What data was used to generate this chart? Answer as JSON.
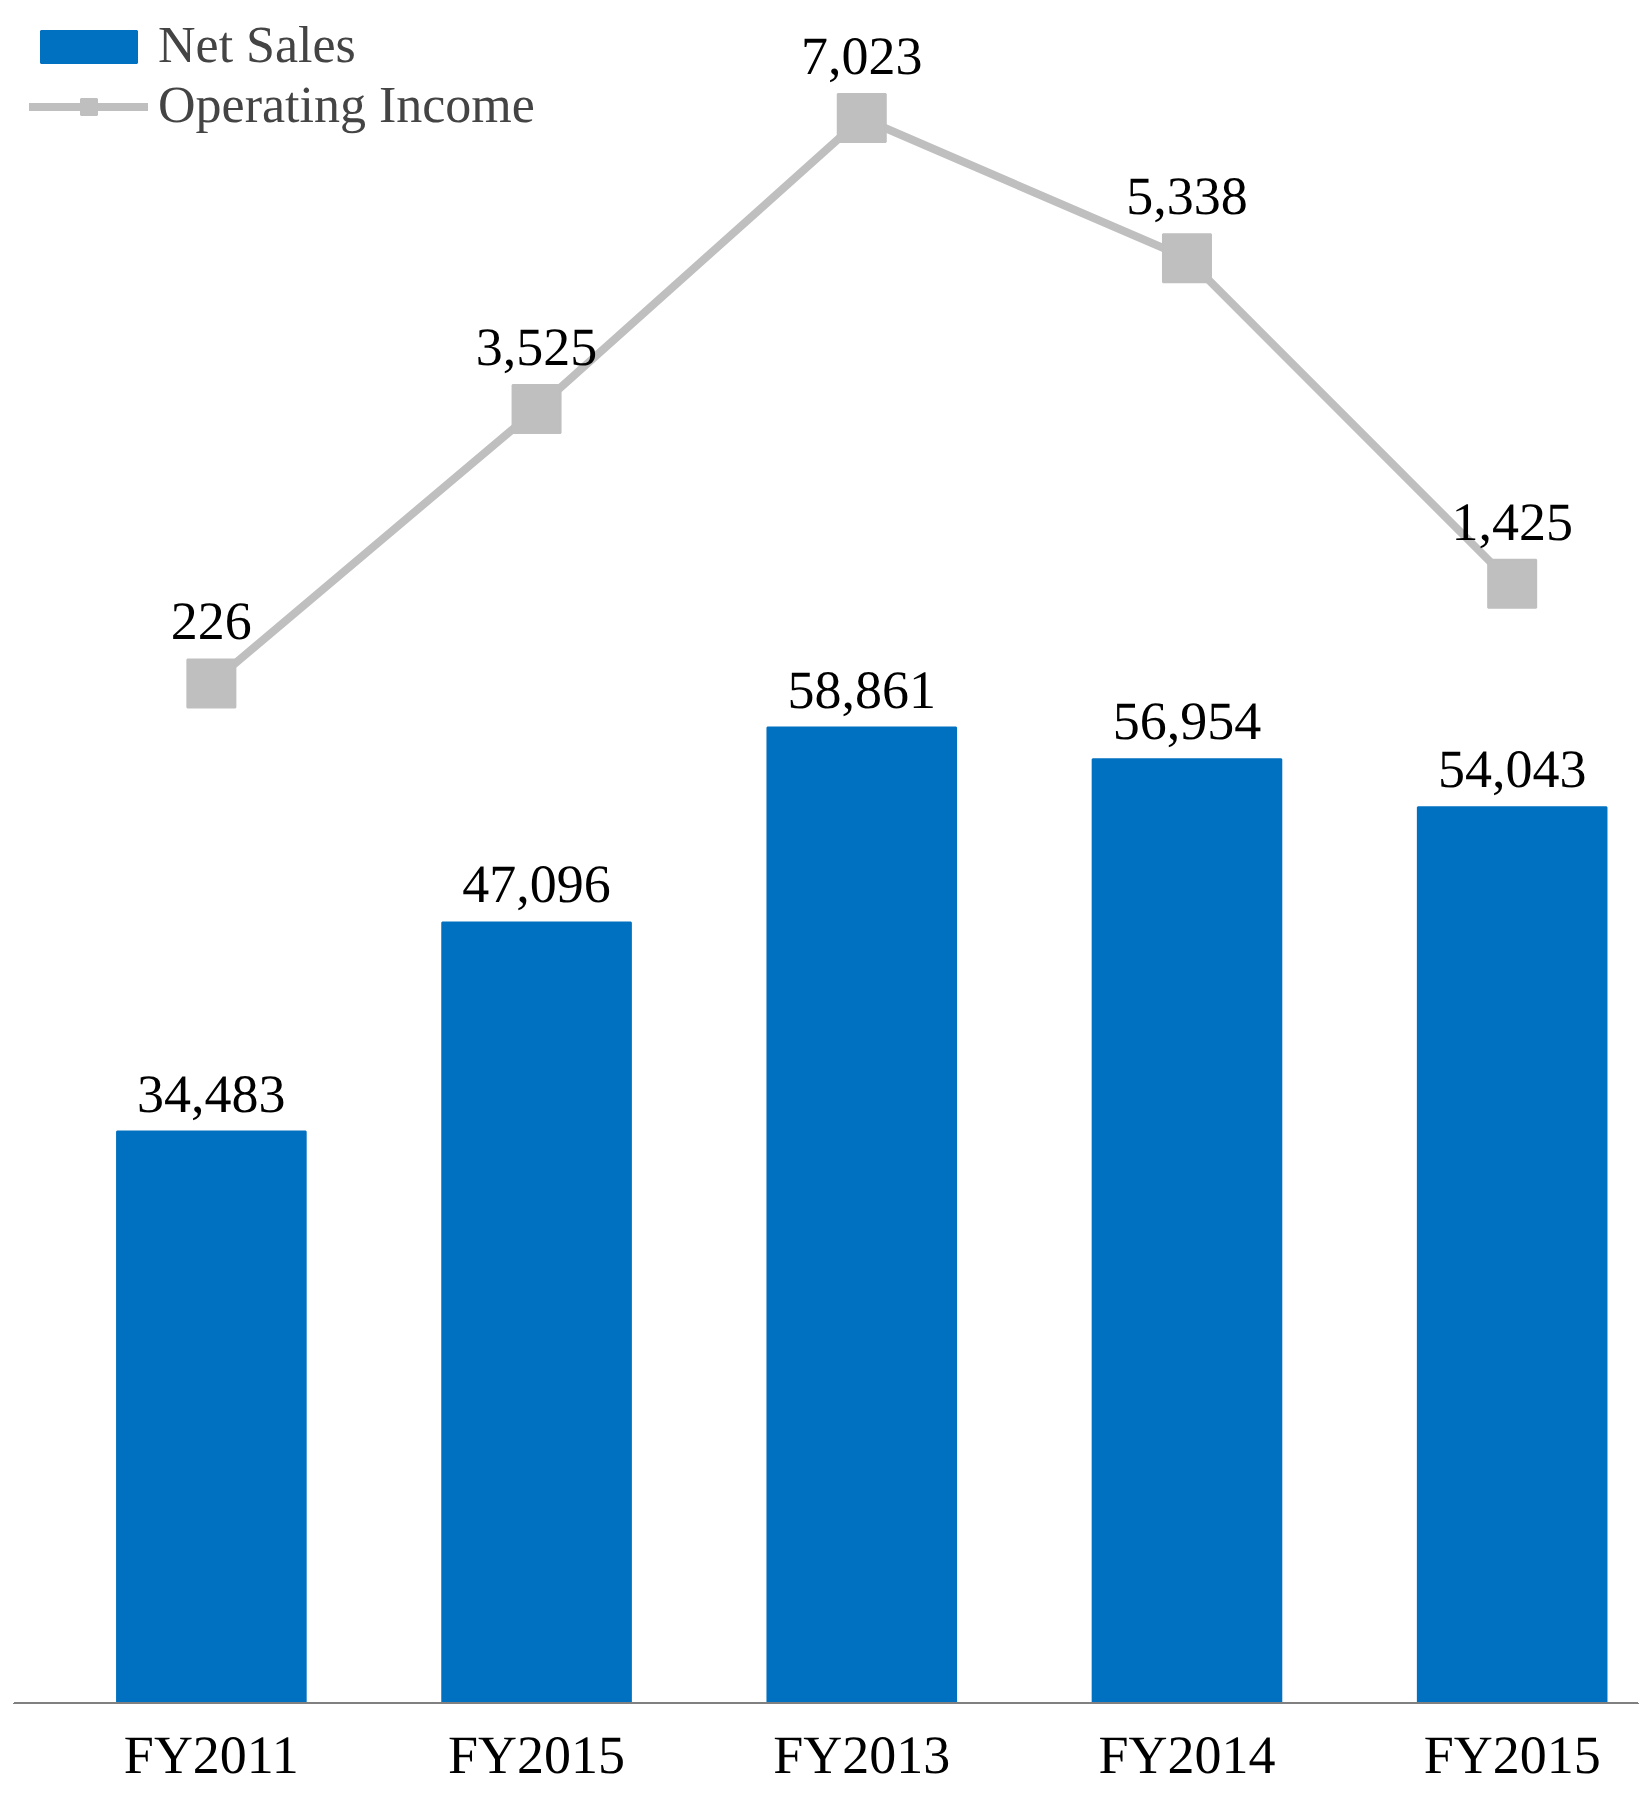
{
  "chart_data": {
    "type": "bar",
    "categories": [
      "FY2011",
      "FY2015",
      "FY2013",
      "FY2014",
      "FY2015"
    ],
    "ylim": [
      0,
      102700
    ],
    "y2lim": [
      -12030,
      8430
    ],
    "series": [
      {
        "name": "Net Sales",
        "color": "#0070c0",
        "values": [
          34483,
          47096,
          58861,
          56954,
          54043
        ],
        "value_labels": [
          "34,483",
          "47,096",
          "58,861",
          "56,954",
          "54,043"
        ]
      },
      {
        "name": "Operating Income",
        "type": "line",
        "axis": "y2",
        "color": "#bfbfbf",
        "marker": "square",
        "values": [
          226,
          3525,
          7023,
          5338,
          1425
        ],
        "value_labels": [
          "226",
          "3,525",
          "7,023",
          "5,338",
          "1,425"
        ]
      }
    ],
    "legend": "top left",
    "tick_labels": "x",
    "grid": false
  }
}
